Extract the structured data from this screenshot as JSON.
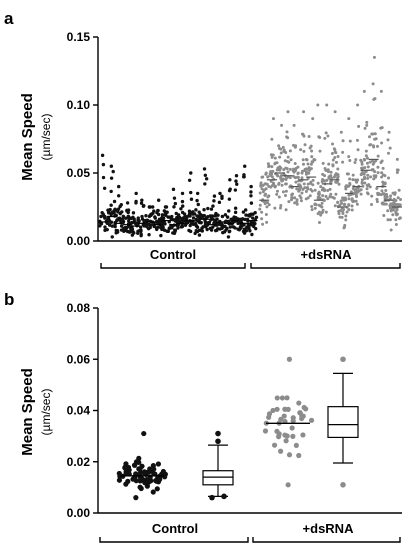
{
  "figure": {
    "panel_a_letter": "a",
    "panel_b_letter": "b"
  },
  "colors": {
    "control": "#111111",
    "dsrna": "#8c8c8c",
    "axis": "#000000"
  },
  "chart_data": [
    {
      "panel": "a",
      "type": "scatter",
      "ylabel": "Mean Speed",
      "ylabel_unit": "(µm/sec)",
      "ylim": [
        0,
        0.15
      ],
      "yticks": [
        "0.00",
        "0.05",
        "0.10",
        "0.15"
      ],
      "grid": false,
      "groups": [
        {
          "name": "Control",
          "columns": 20
        },
        {
          "name": "+dsRNA",
          "columns": 18
        }
      ],
      "series": [
        {
          "group": "Control",
          "median": 0.014,
          "max": 0.063
        },
        {
          "group": "Control",
          "median": 0.018,
          "max": 0.055
        },
        {
          "group": "Control",
          "median": 0.013,
          "max": 0.04
        },
        {
          "group": "Control",
          "median": 0.012,
          "max": 0.028
        },
        {
          "group": "Control",
          "median": 0.011,
          "max": 0.035
        },
        {
          "group": "Control",
          "median": 0.013,
          "max": 0.03
        },
        {
          "group": "Control",
          "median": 0.014,
          "max": 0.025
        },
        {
          "group": "Control",
          "median": 0.012,
          "max": 0.03
        },
        {
          "group": "Control",
          "median": 0.015,
          "max": 0.025
        },
        {
          "group": "Control",
          "median": 0.012,
          "max": 0.038
        },
        {
          "group": "Control",
          "median": 0.013,
          "max": 0.035
        },
        {
          "group": "Control",
          "median": 0.015,
          "max": 0.05
        },
        {
          "group": "Control",
          "median": 0.014,
          "max": 0.035
        },
        {
          "group": "Control",
          "median": 0.016,
          "max": 0.053
        },
        {
          "group": "Control",
          "median": 0.012,
          "max": 0.033
        },
        {
          "group": "Control",
          "median": 0.014,
          "max": 0.035
        },
        {
          "group": "Control",
          "median": 0.013,
          "max": 0.045
        },
        {
          "group": "Control",
          "median": 0.015,
          "max": 0.048
        },
        {
          "group": "Control",
          "median": 0.013,
          "max": 0.055
        },
        {
          "group": "Control",
          "median": 0.015,
          "max": 0.04
        },
        {
          "group": "+dsRNA",
          "median": 0.03,
          "max": 0.05
        },
        {
          "group": "+dsRNA",
          "median": 0.045,
          "max": 0.09
        },
        {
          "group": "+dsRNA",
          "median": 0.05,
          "max": 0.085
        },
        {
          "group": "+dsRNA",
          "median": 0.048,
          "max": 0.095
        },
        {
          "group": "+dsRNA",
          "median": 0.04,
          "max": 0.085
        },
        {
          "group": "+dsRNA",
          "median": 0.045,
          "max": 0.095
        },
        {
          "group": "+dsRNA",
          "median": 0.047,
          "max": 0.09
        },
        {
          "group": "+dsRNA",
          "median": 0.03,
          "max": 0.1
        },
        {
          "group": "+dsRNA",
          "median": 0.042,
          "max": 0.1
        },
        {
          "group": "+dsRNA",
          "median": 0.045,
          "max": 0.095
        },
        {
          "group": "+dsRNA",
          "median": 0.025,
          "max": 0.08
        },
        {
          "group": "+dsRNA",
          "median": 0.035,
          "max": 0.09
        },
        {
          "group": "+dsRNA",
          "median": 0.04,
          "max": 0.1
        },
        {
          "group": "+dsRNA",
          "median": 0.052,
          "max": 0.11
        },
        {
          "group": "+dsRNA",
          "median": 0.06,
          "max": 0.135
        },
        {
          "group": "+dsRNA",
          "median": 0.04,
          "max": 0.11
        },
        {
          "group": "+dsRNA",
          "median": 0.03,
          "max": 0.08
        },
        {
          "group": "+dsRNA",
          "median": 0.025,
          "max": 0.06
        }
      ]
    },
    {
      "panel": "b",
      "type": "scatter",
      "ylabel": "Mean Speed",
      "ylabel_unit": "(µm/sec)",
      "ylim": [
        0,
        0.08
      ],
      "yticks": [
        "0.00",
        "0.02",
        "0.04",
        "0.06",
        "0.08"
      ],
      "grid": false,
      "groups": [
        {
          "name": "Control",
          "dots_mean": 0.0145,
          "dots_min": 0.006,
          "dots_max": 0.031,
          "box": {
            "whisker_low": 0.0065,
            "q1": 0.011,
            "median": 0.014,
            "q3": 0.0165,
            "whisker_high": 0.0265,
            "outliers": [
              0.006,
              0.0065,
              0.028,
              0.031
            ]
          }
        },
        {
          "name": "+dsRNA",
          "dots_mean": 0.035,
          "dots_min": 0.011,
          "dots_max": 0.06,
          "box": {
            "whisker_low": 0.0195,
            "q1": 0.0295,
            "median": 0.0345,
            "q3": 0.0415,
            "whisker_high": 0.0545,
            "outliers": [
              0.011,
              0.06
            ]
          }
        }
      ]
    }
  ]
}
